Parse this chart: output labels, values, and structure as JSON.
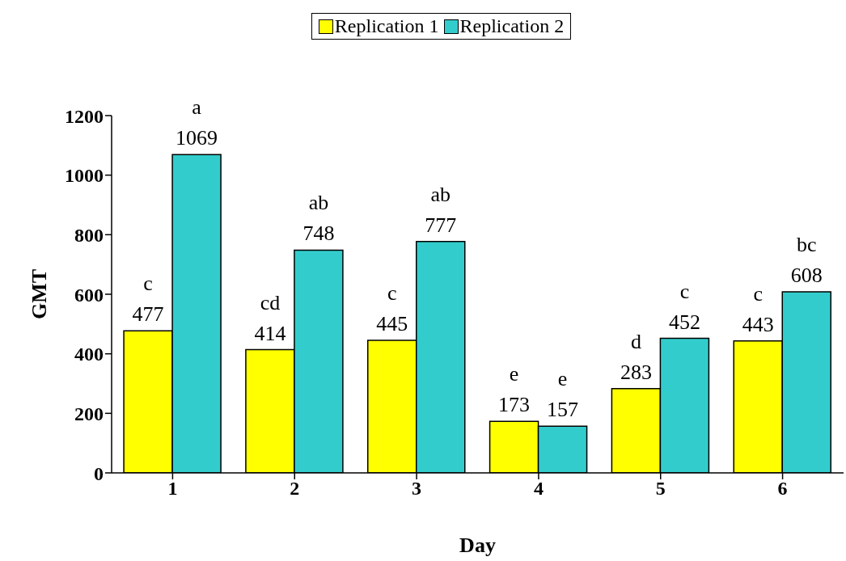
{
  "chart_data": {
    "type": "bar",
    "xlabel": "Day",
    "ylabel": "GMT",
    "categories": [
      "1",
      "2",
      "3",
      "4",
      "5",
      "6"
    ],
    "series": [
      {
        "name": "Replication 1",
        "color": "#ffff00",
        "values": [
          477,
          414,
          445,
          173,
          283,
          443
        ],
        "value_labels": [
          "c\n477",
          "cd\n414",
          "c\n445",
          "e\n173",
          "d\n283",
          "c\n443"
        ]
      },
      {
        "name": "Replication 2",
        "color": "#33cccc",
        "values": [
          1069,
          748,
          777,
          157,
          452,
          608
        ],
        "value_labels": [
          "a\n1069",
          "ab\n748",
          "ab\n777",
          "e\n157",
          "c\n452",
          "bc\n608"
        ]
      }
    ],
    "ylim": [
      0,
      1200
    ],
    "yticks": [
      0,
      200,
      400,
      600,
      800,
      1000,
      1200
    ],
    "grid": false,
    "legend": "top"
  }
}
